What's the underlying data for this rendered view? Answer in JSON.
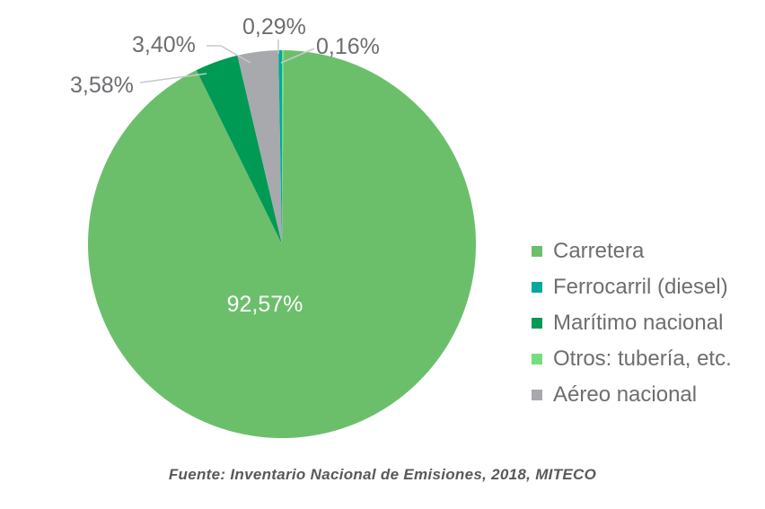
{
  "chart_data": {
    "type": "pie",
    "title": "",
    "start": "top",
    "direction": "clockwise",
    "slices": [
      {
        "name": "Otros: tubería, etc.",
        "value": 0.16,
        "label": "0,16%",
        "color": "#74DE7E"
      },
      {
        "name": "Carretera",
        "value": 92.57,
        "label": "92,57%",
        "color": "#6BBF6B"
      },
      {
        "name": "Marítimo nacional",
        "value": 3.58,
        "label": "3,58%",
        "color": "#009A55"
      },
      {
        "name": "Aéreo nacional",
        "value": 3.4,
        "label": "3,40%",
        "color": "#A7A9AC"
      },
      {
        "name": "Ferrocarril (diesel)",
        "value": 0.29,
        "label": "0,29%",
        "color": "#00A99D"
      }
    ],
    "legend": {
      "placement": "right",
      "entries": [
        {
          "label": "Carretera",
          "color": "#6BBF6B"
        },
        {
          "label": "Ferrocarril (diesel)",
          "color": "#00A99D"
        },
        {
          "label": "Marítimo nacional",
          "color": "#009A55"
        },
        {
          "label": "Otros: tubería, etc.",
          "color": "#74DE7E"
        },
        {
          "label": "Aéreo nacional",
          "color": "#A7A9AC"
        }
      ]
    }
  },
  "source": "Fuente:  Inventario Nacional de Emisiones, 2018, MITECO"
}
